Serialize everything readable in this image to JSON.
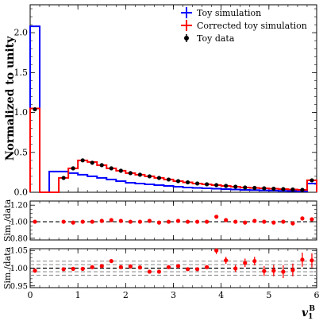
{
  "chart_data": {
    "type": "step-histogram-with-ratio",
    "top": {
      "ylabel": "Normalized to unity",
      "ylim": [
        0,
        2.35
      ],
      "yticks": [
        "0.0",
        "0.5",
        "1.0",
        "1.5",
        "2.0"
      ],
      "ytick_values": [
        0,
        0.5,
        1.0,
        1.5,
        2.0
      ],
      "legend_position": "top-right",
      "series": [
        {
          "name": "Toy simulation",
          "color": "#0000ff",
          "style": "step",
          "bins": [
            0,
            0.2,
            0.4,
            0.6,
            0.8,
            1.0,
            1.2,
            1.4,
            1.6,
            1.8,
            2.0,
            2.2,
            2.4,
            2.6,
            2.8,
            3.0,
            3.2,
            3.4,
            3.6,
            3.8,
            4.0,
            4.2,
            4.4,
            4.6,
            4.8,
            5.0,
            5.2,
            5.4,
            5.6,
            5.8,
            6.0
          ],
          "values": [
            2.08,
            0.0,
            0.26,
            0.26,
            0.24,
            0.22,
            0.2,
            0.18,
            0.16,
            0.14,
            0.12,
            0.11,
            0.1,
            0.09,
            0.08,
            0.07,
            0.06,
            0.055,
            0.05,
            0.045,
            0.04,
            0.035,
            0.03,
            0.027,
            0.024,
            0.021,
            0.018,
            0.015,
            0.013,
            0.11
          ]
        },
        {
          "name": "Corrected toy simulation",
          "color": "#ff0000",
          "style": "step",
          "bins": [
            0,
            0.2,
            0.4,
            0.6,
            0.8,
            1.0,
            1.2,
            1.4,
            1.6,
            1.8,
            2.0,
            2.2,
            2.4,
            2.6,
            2.8,
            3.0,
            3.2,
            3.4,
            3.6,
            3.8,
            4.0,
            4.2,
            4.4,
            4.6,
            4.8,
            5.0,
            5.2,
            5.4,
            5.6,
            5.8,
            6.0
          ],
          "values": [
            1.05,
            0.0,
            0.0,
            0.18,
            0.3,
            0.4,
            0.38,
            0.34,
            0.3,
            0.27,
            0.24,
            0.22,
            0.2,
            0.18,
            0.16,
            0.14,
            0.125,
            0.11,
            0.1,
            0.09,
            0.08,
            0.07,
            0.06,
            0.055,
            0.05,
            0.045,
            0.04,
            0.035,
            0.03,
            0.15
          ]
        },
        {
          "name": "Toy data",
          "color": "#000000",
          "style": "points",
          "x": [
            0.1,
            0.7,
            0.9,
            1.1,
            1.3,
            1.5,
            1.7,
            1.9,
            2.1,
            2.3,
            2.5,
            2.7,
            2.9,
            3.1,
            3.3,
            3.5,
            3.7,
            3.9,
            4.1,
            4.3,
            4.5,
            4.7,
            4.9,
            5.1,
            5.3,
            5.5,
            5.7,
            5.9
          ],
          "y": [
            1.04,
            0.18,
            0.3,
            0.4,
            0.37,
            0.34,
            0.3,
            0.27,
            0.24,
            0.22,
            0.2,
            0.18,
            0.16,
            0.14,
            0.125,
            0.11,
            0.1,
            0.09,
            0.08,
            0.07,
            0.06,
            0.055,
            0.05,
            0.045,
            0.04,
            0.035,
            0.03,
            0.15
          ]
        }
      ]
    },
    "middle": {
      "ylabel": "Sim./data",
      "ylim": [
        0.78,
        1.25
      ],
      "yticks": [
        "0.80",
        "1.00",
        "1.20"
      ],
      "ytick_values": [
        0.8,
        1.0,
        1.2
      ],
      "reference_line": 1.0,
      "points": {
        "color": "#ff0000",
        "x": [
          0.1,
          0.7,
          0.9,
          1.1,
          1.3,
          1.5,
          1.7,
          1.9,
          2.1,
          2.3,
          2.5,
          2.7,
          2.9,
          3.1,
          3.3,
          3.5,
          3.7,
          3.9,
          4.1,
          4.3,
          4.5,
          4.7,
          4.9,
          5.1,
          5.3,
          5.5,
          5.7,
          5.9
        ],
        "y": [
          1.0,
          1.0,
          0.99,
          1.0,
          1.0,
          1.01,
          1.02,
          1.01,
          1.0,
          1.0,
          1.01,
          0.99,
          1.0,
          1.01,
          1.0,
          1.0,
          1.0,
          1.06,
          1.02,
          1.0,
          0.99,
          1.01,
          1.0,
          0.99,
          1.0,
          0.98,
          1.04,
          1.03
        ]
      }
    },
    "bottom": {
      "ylabel": "Sim./data",
      "ylim": [
        0.945,
        1.055
      ],
      "yticks": [
        "0.95",
        "1.00",
        "1.05"
      ],
      "ytick_values": [
        0.95,
        1.0,
        1.05
      ],
      "reference_line": 1.0,
      "band_lines": [
        0.98,
        0.99,
        1.01,
        1.02
      ],
      "points": {
        "color": "#ff0000",
        "x": [
          0.1,
          0.7,
          0.9,
          1.1,
          1.3,
          1.5,
          1.7,
          1.9,
          2.1,
          2.3,
          2.5,
          2.7,
          2.9,
          3.1,
          3.3,
          3.5,
          3.7,
          3.9,
          4.1,
          4.3,
          4.5,
          4.7,
          4.9,
          5.1,
          5.3,
          5.5,
          5.7,
          5.9
        ],
        "y": [
          0.993,
          0.997,
          0.998,
          0.998,
          1.003,
          1.006,
          1.02,
          1.003,
          1.005,
          1.002,
          0.99,
          0.99,
          1.003,
          1.006,
          0.997,
          0.997,
          1.003,
          1.05,
          1.022,
          0.999,
          1.015,
          1.02,
          0.992,
          0.993,
          0.99,
          0.995,
          1.024,
          1.022
        ],
        "err": [
          0.0,
          0.0,
          0.0,
          0.0,
          0.0,
          0.0,
          0.0,
          0.0,
          0.0,
          0.0,
          0.0,
          0.0,
          0.0,
          0.0,
          0.0,
          0.0,
          0.0,
          0.01,
          0.01,
          0.01,
          0.012,
          0.012,
          0.014,
          0.016,
          0.018,
          0.018,
          0.02,
          0.02
        ]
      }
    },
    "x": {
      "label_main": "v",
      "label_sub": "1",
      "label_sup": "B",
      "xlim": [
        0,
        6
      ],
      "xticks": [
        "0",
        "1",
        "2",
        "3",
        "4",
        "5",
        "6"
      ],
      "xtick_values": [
        0,
        1,
        2,
        3,
        4,
        5,
        6
      ]
    }
  }
}
